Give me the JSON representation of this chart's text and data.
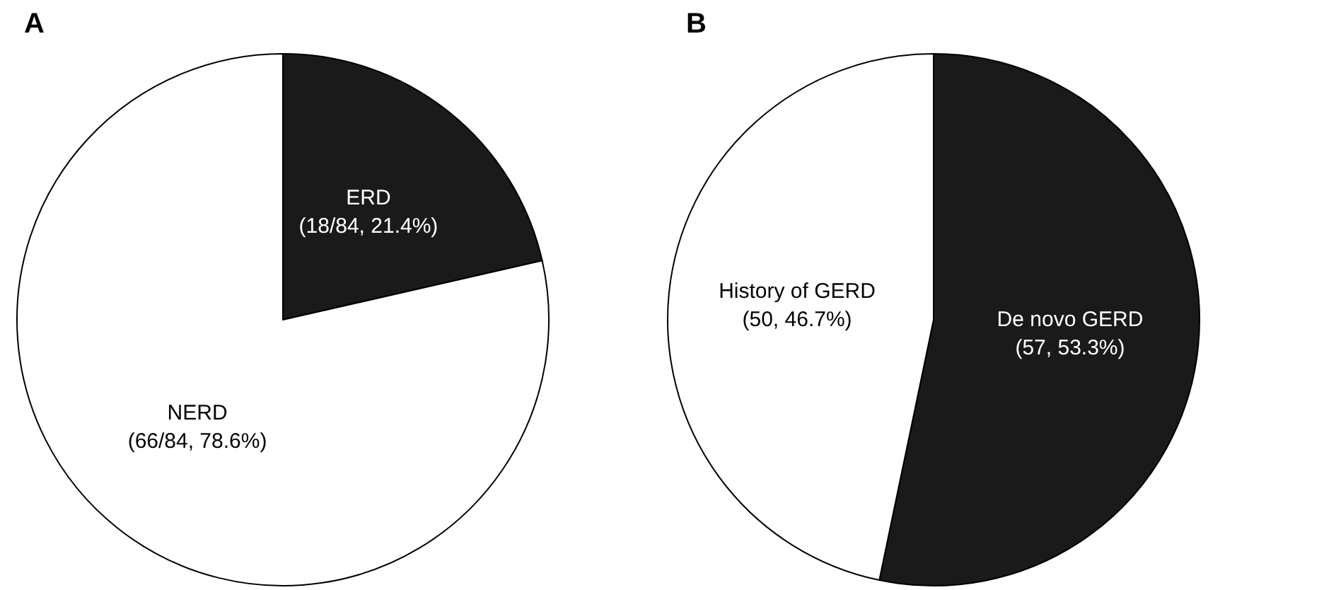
{
  "chart_data": [
    {
      "type": "pie",
      "title": "A",
      "categories": [
        "ERD",
        "NERD"
      ],
      "values": [
        18,
        66
      ],
      "colors": [
        "#1a1a1a",
        "#ffffff"
      ],
      "value_labels": [
        "(18/84, 21.4%)",
        "(66/84, 78.6%)"
      ],
      "legend": false
    },
    {
      "type": "pie",
      "title": "B",
      "categories": [
        "De novo GERD",
        "History of GERD"
      ],
      "values": [
        57,
        50
      ],
      "colors": [
        "#1a1a1a",
        "#ffffff"
      ],
      "value_labels": [
        "(57, 53.3%)",
        "(50, 46.7%)"
      ],
      "legend": false
    }
  ]
}
